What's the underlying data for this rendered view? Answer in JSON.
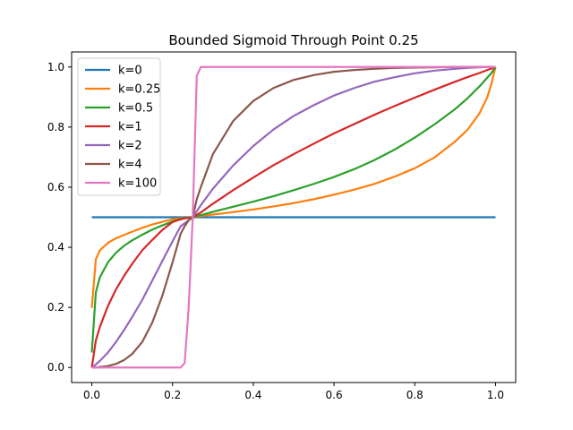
{
  "chart_data": {
    "type": "line",
    "title": "Bounded Sigmoid Through Point 0.25",
    "xlabel": "",
    "ylabel": "",
    "xlim": [
      -0.05,
      1.05
    ],
    "ylim": [
      -0.05,
      1.05
    ],
    "x_ticks": [
      0.0,
      0.2,
      0.4,
      0.6,
      0.8,
      1.0
    ],
    "x_tick_labels": [
      "0.0",
      "0.2",
      "0.4",
      "0.6",
      "0.8",
      "1.0"
    ],
    "y_ticks": [
      0.0,
      0.2,
      0.4,
      0.6,
      0.8,
      1.0
    ],
    "y_tick_labels": [
      "0.0",
      "0.2",
      "0.4",
      "0.6",
      "0.8",
      "1.0"
    ],
    "grid": false,
    "legend_position": "top-left",
    "x": [
      0.0,
      0.01,
      0.02,
      0.04,
      0.06,
      0.08,
      0.1,
      0.125,
      0.15,
      0.175,
      0.2,
      0.22,
      0.23,
      0.24,
      0.25,
      0.26,
      0.27,
      0.3,
      0.35,
      0.4,
      0.45,
      0.5,
      0.55,
      0.6,
      0.65,
      0.7,
      0.75,
      0.8,
      0.85,
      0.9,
      0.93,
      0.96,
      0.98,
      0.99,
      1.0
    ],
    "series": [
      {
        "name": "k=0",
        "color": "#1f77b4",
        "values": [
          0.5,
          0.5,
          0.5,
          0.5,
          0.5,
          0.5,
          0.5,
          0.5,
          0.5,
          0.5,
          0.5,
          0.5,
          0.5,
          0.5,
          0.5,
          0.5,
          0.5,
          0.5,
          0.5,
          0.5,
          0.5,
          0.5,
          0.5,
          0.5,
          0.5,
          0.5,
          0.5,
          0.5,
          0.5,
          0.5,
          0.5,
          0.5,
          0.5,
          0.5,
          0.5
        ]
      },
      {
        "name": "k=0.25",
        "color": "#ff7f0e",
        "values": [
          0.198,
          0.36,
          0.39,
          0.415,
          0.43,
          0.441,
          0.452,
          0.465,
          0.476,
          0.485,
          0.493,
          0.497,
          0.498,
          0.499,
          0.5,
          0.502,
          0.504,
          0.509,
          0.517,
          0.526,
          0.536,
          0.547,
          0.56,
          0.575,
          0.592,
          0.611,
          0.635,
          0.663,
          0.7,
          0.752,
          0.79,
          0.845,
          0.9,
          0.945,
          1.0
        ]
      },
      {
        "name": "k=0.5",
        "color": "#2ca02c",
        "values": [
          0.05,
          0.25,
          0.3,
          0.35,
          0.382,
          0.405,
          0.423,
          0.442,
          0.459,
          0.473,
          0.486,
          0.495,
          0.498,
          0.499,
          0.5,
          0.504,
          0.507,
          0.518,
          0.535,
          0.552,
          0.57,
          0.59,
          0.611,
          0.634,
          0.66,
          0.69,
          0.725,
          0.765,
          0.81,
          0.86,
          0.895,
          0.935,
          0.965,
          0.98,
          1.0
        ]
      },
      {
        "name": "k=1",
        "color": "#d62728",
        "values": [
          0.0,
          0.09,
          0.135,
          0.205,
          0.26,
          0.305,
          0.345,
          0.39,
          0.425,
          0.458,
          0.484,
          0.493,
          0.496,
          0.498,
          0.5,
          0.508,
          0.516,
          0.545,
          0.59,
          0.632,
          0.673,
          0.71,
          0.745,
          0.779,
          0.81,
          0.841,
          0.87,
          0.898,
          0.925,
          0.951,
          0.966,
          0.98,
          0.99,
          0.995,
          1.0
        ]
      },
      {
        "name": "k=2",
        "color": "#9467bd",
        "values": [
          0.0,
          0.01,
          0.022,
          0.05,
          0.085,
          0.125,
          0.168,
          0.225,
          0.29,
          0.355,
          0.42,
          0.47,
          0.48,
          0.49,
          0.5,
          0.52,
          0.54,
          0.595,
          0.672,
          0.737,
          0.792,
          0.837,
          0.873,
          0.905,
          0.93,
          0.951,
          0.966,
          0.979,
          0.988,
          0.994,
          0.997,
          0.999,
          1.0,
          1.0,
          1.0
        ]
      },
      {
        "name": "k=4",
        "color": "#8c564b",
        "values": [
          0.0,
          0.0,
          0.002,
          0.005,
          0.012,
          0.025,
          0.045,
          0.085,
          0.15,
          0.24,
          0.35,
          0.445,
          0.47,
          0.49,
          0.5,
          0.56,
          0.6,
          0.71,
          0.82,
          0.887,
          0.93,
          0.957,
          0.973,
          0.984,
          0.99,
          0.994,
          0.997,
          0.998,
          0.999,
          1.0,
          1.0,
          1.0,
          1.0,
          1.0,
          1.0
        ]
      },
      {
        "name": "k=100",
        "color": "#e377c2",
        "values": [
          0.0,
          0.0,
          0.0,
          0.0,
          0.0,
          0.0,
          0.0,
          0.0,
          0.0,
          0.0,
          0.0,
          0.0,
          0.015,
          0.2,
          0.5,
          0.97,
          1.0,
          1.0,
          1.0,
          1.0,
          1.0,
          1.0,
          1.0,
          1.0,
          1.0,
          1.0,
          1.0,
          1.0,
          1.0,
          1.0,
          1.0,
          1.0,
          1.0,
          1.0,
          1.0
        ]
      }
    ]
  }
}
